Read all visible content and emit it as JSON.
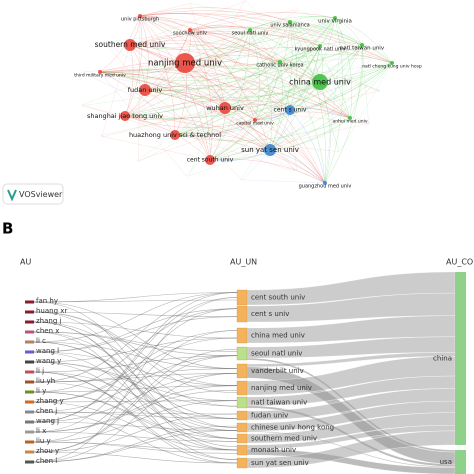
{
  "panel_a": {
    "nodes": [
      {
        "label": "univ pittsburgh"
      },
      {
        "label": "soochow univ"
      },
      {
        "label": "seoul natl univ"
      },
      {
        "label": "univ salamanca"
      },
      {
        "label": "univ virginia"
      },
      {
        "label": "southern med univ"
      },
      {
        "label": "kyungpook natl univ"
      },
      {
        "label": "natl taiwan univ"
      },
      {
        "label": "nanjing med univ"
      },
      {
        "label": "catholic univ korea"
      },
      {
        "label": "natl cheng kung univ hosp"
      },
      {
        "label": "third military med univ"
      },
      {
        "label": "china med univ"
      },
      {
        "label": "fudan univ"
      },
      {
        "label": "wuhan univ"
      },
      {
        "label": "cent s univ"
      },
      {
        "label": "capital med univ"
      },
      {
        "label": "shanghai jiao tong univ"
      },
      {
        "label": "anhui med univ"
      },
      {
        "label": "huazhong univ sci & technol"
      },
      {
        "label": "sun yat sen univ"
      },
      {
        "label": "cent south univ"
      },
      {
        "label": "guangzhou med univ"
      }
    ],
    "logo": "VOSviewer"
  },
  "panel_b": {
    "label": "B",
    "columns": [
      "AU",
      "AU_UN",
      "AU_CO"
    ],
    "authors": [
      "fan hy",
      "huang xr",
      "zhang j",
      "chen x",
      "li c",
      "wang l",
      "wang y",
      "li j",
      "liu yh",
      "li y",
      "zhang y",
      "chen j",
      "wang j",
      "li x",
      "liu y",
      "zhou y",
      "chen l"
    ],
    "institutions": [
      "cent south univ",
      "cent s univ",
      "china med univ",
      "seoul natl univ",
      "vanderbilt univ",
      "nanjing med univ",
      "natl taiwan univ",
      "fudan univ",
      "chinese univ hong kong",
      "southern med univ",
      "monash univ",
      "sun yat sen univ"
    ],
    "countries": [
      "china",
      "usa"
    ]
  }
}
